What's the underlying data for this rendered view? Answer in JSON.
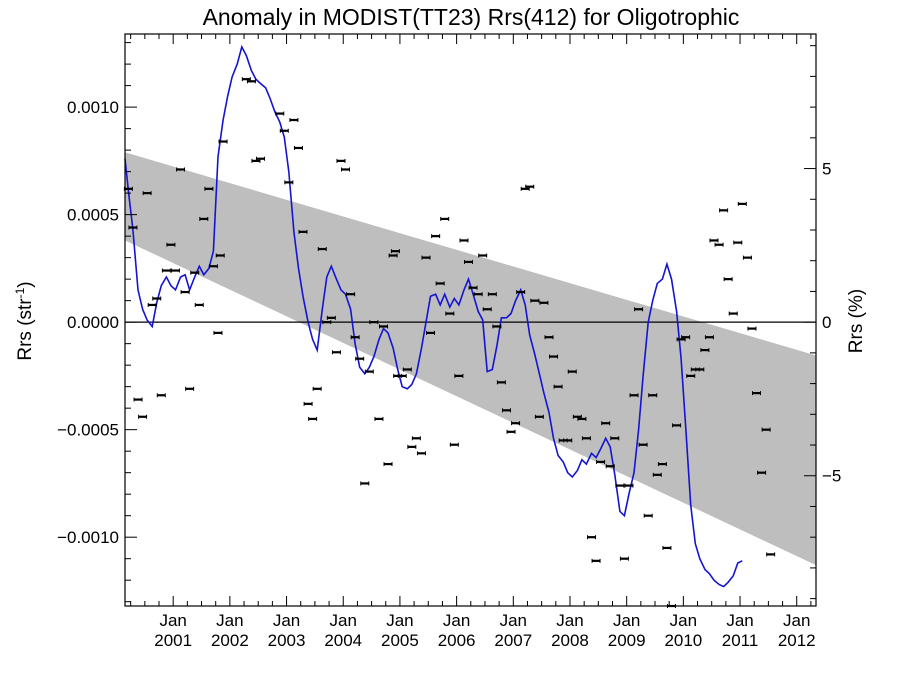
{
  "chart_data": {
    "type": "line",
    "title": "Anomaly in MODIST(TT23) Rrs(412) for Oligotrophic",
    "ylabel_left": "Rrs (str",
    "ylabel_left_sup": "-1",
    "ylabel_left_end": ")",
    "ylabel_right": "Rrs (%)",
    "xlim": [
      2000.15,
      2012.34
    ],
    "ylim": [
      -0.00132,
      0.00134
    ],
    "right_axis_scale_pct_per_unit": 7000,
    "x_ticks": [
      {
        "x": 2001.0,
        "month": "Jan",
        "year": "2001"
      },
      {
        "x": 2002.0,
        "month": "Jan",
        "year": "2002"
      },
      {
        "x": 2003.0,
        "month": "Jan",
        "year": "2003"
      },
      {
        "x": 2004.0,
        "month": "Jan",
        "year": "2004"
      },
      {
        "x": 2005.0,
        "month": "Jan",
        "year": "2005"
      },
      {
        "x": 2006.0,
        "month": "Jan",
        "year": "2006"
      },
      {
        "x": 2007.0,
        "month": "Jan",
        "year": "2007"
      },
      {
        "x": 2008.0,
        "month": "Jan",
        "year": "2008"
      },
      {
        "x": 2009.0,
        "month": "Jan",
        "year": "2009"
      },
      {
        "x": 2010.0,
        "month": "Jan",
        "year": "2010"
      },
      {
        "x": 2011.0,
        "month": "Jan",
        "year": "2011"
      },
      {
        "x": 2012.0,
        "month": "Jan",
        "year": "2012"
      }
    ],
    "y_ticks_left": [
      {
        "v": 0.001,
        "label": "0.0010"
      },
      {
        "v": 0.0005,
        "label": "0.0005"
      },
      {
        "v": 0.0,
        "label": "0.0000"
      },
      {
        "v": -0.0005,
        "label": "−0.0005"
      },
      {
        "v": -0.001,
        "label": "−0.0010"
      }
    ],
    "y_ticks_right": [
      {
        "v": 5,
        "label": "5"
      },
      {
        "v": 0,
        "label": "0"
      },
      {
        "v": -5,
        "label": "−5"
      }
    ],
    "band": {
      "color": "#bebebe",
      "upper": [
        [
          2000.15,
          0.00079
        ],
        [
          2012.34,
          -0.000155
        ]
      ],
      "lower": [
        [
          2000.15,
          0.00038
        ],
        [
          2012.34,
          -0.00113
        ]
      ]
    },
    "zero_line": true,
    "series": [
      {
        "kind": "points",
        "color": "#000000",
        "points": [
          [
            2000.21,
            0.00062
          ],
          [
            2000.29,
            0.00044
          ],
          [
            2000.38,
            -0.00036
          ],
          [
            2000.46,
            -0.00044
          ],
          [
            2000.54,
            0.0006
          ],
          [
            2000.63,
            8e-05
          ],
          [
            2000.71,
            0.00011
          ],
          [
            2000.79,
            -0.00034
          ],
          [
            2000.88,
            0.00024
          ],
          [
            2000.96,
            0.00036
          ],
          [
            2001.04,
            0.00024
          ],
          [
            2001.13,
            0.00071
          ],
          [
            2001.21,
            0.00014
          ],
          [
            2001.29,
            -0.00031
          ],
          [
            2001.38,
            0.00023
          ],
          [
            2001.46,
            8e-05
          ],
          [
            2001.54,
            0.00048
          ],
          [
            2001.63,
            0.00062
          ],
          [
            2001.71,
            0.00026
          ],
          [
            2001.79,
            -5e-05
          ],
          [
            2001.83,
            0.00031
          ],
          [
            2001.88,
            0.00084
          ],
          [
            2002.29,
            0.00113
          ],
          [
            2002.38,
            0.00112
          ],
          [
            2002.46,
            0.00075
          ],
          [
            2002.54,
            0.00076
          ],
          [
            2002.88,
            0.00097
          ],
          [
            2002.96,
            0.00089
          ],
          [
            2003.04,
            0.00065
          ],
          [
            2003.13,
            0.00094
          ],
          [
            2003.21,
            0.00081
          ],
          [
            2003.29,
            0.00042
          ],
          [
            2003.38,
            -0.00038
          ],
          [
            2003.46,
            -0.00045
          ],
          [
            2003.54,
            -0.00031
          ],
          [
            2003.63,
            0.00034
          ],
          [
            2003.71,
            0.0
          ],
          [
            2003.79,
            2e-05
          ],
          [
            2003.88,
            -0.00014
          ],
          [
            2003.96,
            0.00075
          ],
          [
            2004.04,
            0.00071
          ],
          [
            2004.13,
            0.00013
          ],
          [
            2004.21,
            -7e-05
          ],
          [
            2004.29,
            -0.00017
          ],
          [
            2004.38,
            -0.00075
          ],
          [
            2004.46,
            -0.00023
          ],
          [
            2004.54,
            0.0
          ],
          [
            2004.63,
            -0.00045
          ],
          [
            2004.71,
            -2e-05
          ],
          [
            2004.79,
            -0.00066
          ],
          [
            2004.88,
            0.00031
          ],
          [
            2004.92,
            0.00033
          ],
          [
            2004.96,
            -0.00025
          ],
          [
            2005.04,
            -0.00025
          ],
          [
            2005.13,
            -0.00022
          ],
          [
            2005.21,
            -0.00058
          ],
          [
            2005.29,
            -0.00054
          ],
          [
            2005.38,
            -0.00061
          ],
          [
            2005.46,
            0.0003
          ],
          [
            2005.54,
            -5e-05
          ],
          [
            2005.63,
            0.0004
          ],
          [
            2005.71,
            0.00018
          ],
          [
            2005.79,
            0.00048
          ],
          [
            2005.88,
            4e-05
          ],
          [
            2005.96,
            -0.00057
          ],
          [
            2006.04,
            -0.00025
          ],
          [
            2006.13,
            0.00038
          ],
          [
            2006.21,
            0.00028
          ],
          [
            2006.29,
            0.00016
          ],
          [
            2006.38,
            0.00013
          ],
          [
            2006.46,
            0.00031
          ],
          [
            2006.54,
            6e-05
          ],
          [
            2006.63,
            0.00013
          ],
          [
            2006.71,
            -2e-05
          ],
          [
            2006.79,
            -0.00028
          ],
          [
            2006.88,
            -0.00041
          ],
          [
            2006.96,
            -0.00051
          ],
          [
            2007.04,
            -0.00047
          ],
          [
            2007.13,
            0.00014
          ],
          [
            2007.21,
            0.00062
          ],
          [
            2007.29,
            0.00063
          ],
          [
            2007.38,
            0.0001
          ],
          [
            2007.46,
            -0.00044
          ],
          [
            2007.54,
            9e-05
          ],
          [
            2007.63,
            -7e-05
          ],
          [
            2007.71,
            -0.00016
          ],
          [
            2007.79,
            -0.0003
          ],
          [
            2007.88,
            -0.00055
          ],
          [
            2007.96,
            -0.00055
          ],
          [
            2008.04,
            -0.00023
          ],
          [
            2008.13,
            -0.00044
          ],
          [
            2008.21,
            -0.00045
          ],
          [
            2008.29,
            -0.00054
          ],
          [
            2008.38,
            -0.001
          ],
          [
            2008.46,
            -0.00111
          ],
          [
            2008.54,
            -0.00065
          ],
          [
            2008.63,
            -0.00047
          ],
          [
            2008.71,
            -0.00067
          ],
          [
            2008.79,
            -0.00054
          ],
          [
            2008.88,
            -0.00076
          ],
          [
            2008.96,
            -0.0011
          ],
          [
            2009.04,
            -0.00076
          ],
          [
            2009.13,
            -0.00034
          ],
          [
            2009.21,
            6e-05
          ],
          [
            2009.29,
            -0.00057
          ],
          [
            2009.38,
            -0.0009
          ],
          [
            2009.46,
            -0.00034
          ],
          [
            2009.54,
            -0.00071
          ],
          [
            2009.63,
            -0.00066
          ],
          [
            2009.71,
            -0.00105
          ],
          [
            2009.79,
            -0.00132
          ],
          [
            2009.88,
            -0.00048
          ],
          [
            2009.96,
            -8e-05
          ],
          [
            2010.04,
            -7e-05
          ],
          [
            2010.13,
            -0.00025
          ],
          [
            2010.21,
            -0.00022
          ],
          [
            2010.29,
            -0.00022
          ],
          [
            2010.38,
            -0.00013
          ],
          [
            2010.46,
            -7e-05
          ],
          [
            2010.54,
            0.00038
          ],
          [
            2010.63,
            0.00036
          ],
          [
            2010.71,
            0.00052
          ],
          [
            2010.79,
            0.0002
          ],
          [
            2010.88,
            4e-05
          ],
          [
            2010.96,
            0.00037
          ],
          [
            2011.04,
            0.00055
          ],
          [
            2011.13,
            0.0003
          ],
          [
            2011.21,
            -3e-05
          ],
          [
            2011.29,
            -0.00033
          ],
          [
            2011.38,
            -0.0007
          ],
          [
            2011.46,
            -0.0005
          ],
          [
            2011.54,
            -0.00108
          ]
        ]
      },
      {
        "kind": "smooth-line",
        "color": "#1414d2",
        "points": [
          [
            2000.15,
            0.00076
          ],
          [
            2000.21,
            0.00061
          ],
          [
            2000.29,
            0.00043
          ],
          [
            2000.38,
            0.00015
          ],
          [
            2000.46,
            6e-05
          ],
          [
            2000.54,
            1e-05
          ],
          [
            2000.63,
            -2e-05
          ],
          [
            2000.71,
            9e-05
          ],
          [
            2000.79,
            0.00017
          ],
          [
            2000.88,
            0.00021
          ],
          [
            2000.96,
            0.00017
          ],
          [
            2001.04,
            0.00015
          ],
          [
            2001.13,
            0.00021
          ],
          [
            2001.21,
            0.00022
          ],
          [
            2001.29,
            0.00015
          ],
          [
            2001.38,
            0.00021
          ],
          [
            2001.46,
            0.00026
          ],
          [
            2001.54,
            0.00022
          ],
          [
            2001.63,
            0.00025
          ],
          [
            2001.71,
            0.00033
          ],
          [
            2001.79,
            0.00077
          ],
          [
            2001.88,
            0.00094
          ],
          [
            2001.96,
            0.00105
          ],
          [
            2002.04,
            0.00114
          ],
          [
            2002.13,
            0.0012
          ],
          [
            2002.21,
            0.00128
          ],
          [
            2002.29,
            0.00124
          ],
          [
            2002.38,
            0.00117
          ],
          [
            2002.46,
            0.00113
          ],
          [
            2002.54,
            0.00111
          ],
          [
            2002.63,
            0.00109
          ],
          [
            2002.71,
            0.00104
          ],
          [
            2002.79,
            0.00098
          ],
          [
            2002.88,
            0.00093
          ],
          [
            2002.96,
            0.00086
          ],
          [
            2003.04,
            0.0007
          ],
          [
            2003.13,
            0.00042
          ],
          [
            2003.21,
            0.00025
          ],
          [
            2003.29,
            0.00012
          ],
          [
            2003.38,
            0.0
          ],
          [
            2003.46,
            -8e-05
          ],
          [
            2003.54,
            -0.00013
          ],
          [
            2003.63,
            6e-05
          ],
          [
            2003.71,
            0.00021
          ],
          [
            2003.79,
            0.00026
          ],
          [
            2003.88,
            0.0002
          ],
          [
            2003.96,
            0.00015
          ],
          [
            2004.04,
            0.00013
          ],
          [
            2004.13,
            6e-05
          ],
          [
            2004.21,
            -0.0001
          ],
          [
            2004.29,
            -0.00021
          ],
          [
            2004.38,
            -0.00024
          ],
          [
            2004.46,
            -0.00021
          ],
          [
            2004.54,
            -0.00016
          ],
          [
            2004.63,
            -8e-05
          ],
          [
            2004.71,
            -3e-05
          ],
          [
            2004.79,
            -5e-05
          ],
          [
            2004.88,
            -0.00012
          ],
          [
            2004.96,
            -0.00022
          ],
          [
            2005.04,
            -0.0003
          ],
          [
            2005.13,
            -0.00031
          ],
          [
            2005.21,
            -0.00029
          ],
          [
            2005.29,
            -0.00024
          ],
          [
            2005.38,
            -0.00012
          ],
          [
            2005.46,
            0.0
          ],
          [
            2005.54,
            0.00012
          ],
          [
            2005.63,
            0.00013
          ],
          [
            2005.71,
            8e-05
          ],
          [
            2005.79,
            0.00013
          ],
          [
            2005.88,
            7e-05
          ],
          [
            2005.96,
            0.00011
          ],
          [
            2006.04,
            8e-05
          ],
          [
            2006.13,
            0.00015
          ],
          [
            2006.21,
            0.0002
          ],
          [
            2006.29,
            0.00013
          ],
          [
            2006.38,
            5e-05
          ],
          [
            2006.46,
            1e-05
          ],
          [
            2006.54,
            -0.00023
          ],
          [
            2006.63,
            -0.00022
          ],
          [
            2006.71,
            -0.00011
          ],
          [
            2006.79,
            2e-05
          ],
          [
            2006.88,
            2e-05
          ],
          [
            2006.96,
            4e-05
          ],
          [
            2007.04,
            0.0001
          ],
          [
            2007.13,
            0.00015
          ],
          [
            2007.21,
            8e-05
          ],
          [
            2007.29,
            -6e-05
          ],
          [
            2007.38,
            -0.00015
          ],
          [
            2007.46,
            -0.00024
          ],
          [
            2007.54,
            -0.00033
          ],
          [
            2007.63,
            -0.00042
          ],
          [
            2007.71,
            -0.00054
          ],
          [
            2007.79,
            -0.00062
          ],
          [
            2007.88,
            -0.00065
          ],
          [
            2007.96,
            -0.0007
          ],
          [
            2008.04,
            -0.00072
          ],
          [
            2008.13,
            -0.00069
          ],
          [
            2008.21,
            -0.00064
          ],
          [
            2008.29,
            -0.00066
          ],
          [
            2008.38,
            -0.00061
          ],
          [
            2008.46,
            -0.00063
          ],
          [
            2008.54,
            -0.00059
          ],
          [
            2008.63,
            -0.00054
          ],
          [
            2008.71,
            -0.00058
          ],
          [
            2008.79,
            -0.00071
          ],
          [
            2008.88,
            -0.00088
          ],
          [
            2008.96,
            -0.0009
          ],
          [
            2009.04,
            -0.0008
          ],
          [
            2009.13,
            -0.0007
          ],
          [
            2009.21,
            -0.0005
          ],
          [
            2009.29,
            -0.00025
          ],
          [
            2009.38,
            0.0
          ],
          [
            2009.46,
            0.0001
          ],
          [
            2009.54,
            0.00018
          ],
          [
            2009.63,
            0.0002
          ],
          [
            2009.71,
            0.00027
          ],
          [
            2009.79,
            0.0002
          ],
          [
            2009.88,
            5e-05
          ],
          [
            2009.96,
            -0.00017
          ],
          [
            2010.04,
            -0.00048
          ],
          [
            2010.13,
            -0.00085
          ],
          [
            2010.21,
            -0.00103
          ],
          [
            2010.29,
            -0.0011
          ],
          [
            2010.38,
            -0.00115
          ],
          [
            2010.46,
            -0.00117
          ],
          [
            2010.54,
            -0.0012
          ],
          [
            2010.63,
            -0.00122
          ],
          [
            2010.71,
            -0.00123
          ],
          [
            2010.79,
            -0.00121
          ],
          [
            2010.88,
            -0.00118
          ],
          [
            2010.96,
            -0.00112
          ],
          [
            2011.04,
            -0.00111
          ]
        ]
      }
    ]
  }
}
